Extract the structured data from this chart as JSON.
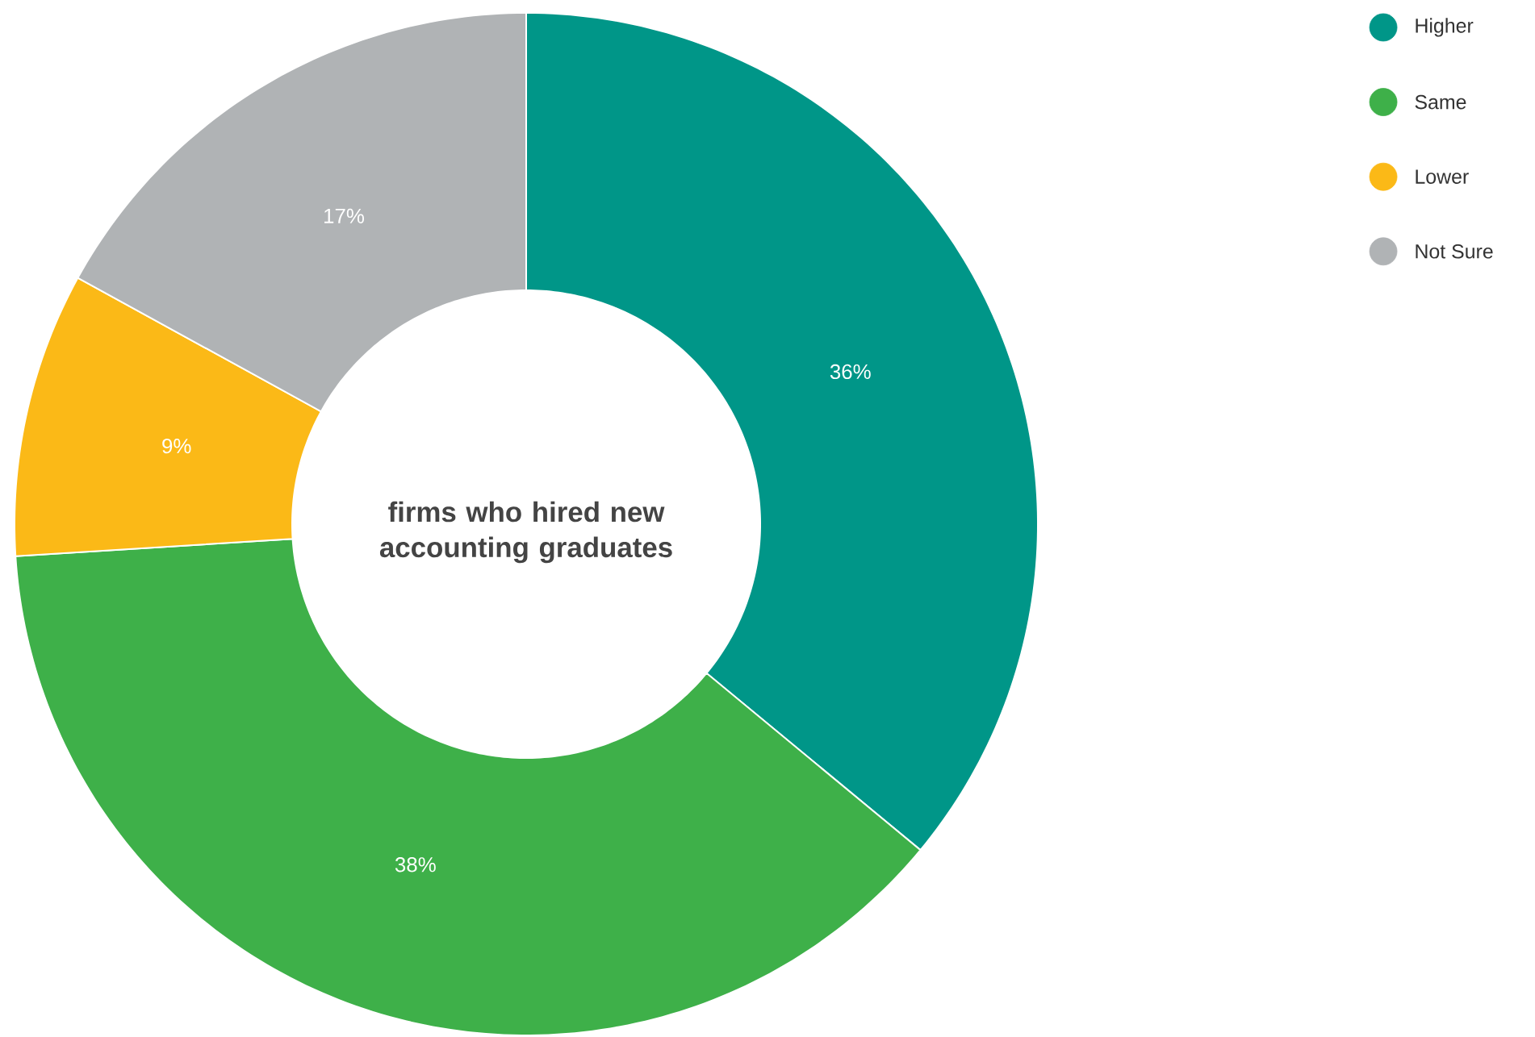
{
  "chart_data": {
    "type": "donut",
    "title": "firms who hired new accounting graduates",
    "categories": [
      "Higher",
      "Same",
      "Lower",
      "Not Sure"
    ],
    "values": [
      36,
      38,
      9,
      17
    ],
    "colors": [
      "#009688",
      "#3eb049",
      "#fbb917",
      "#b0b3b5"
    ],
    "value_labels": [
      "36%",
      "38%",
      "9%",
      "17%"
    ],
    "legend": "top right"
  }
}
